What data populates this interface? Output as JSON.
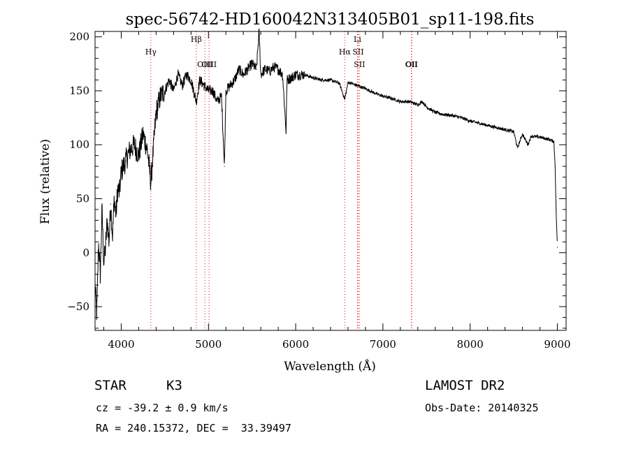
{
  "chart_data": {
    "type": "line",
    "title": "spec-56742-HD160042N313405B01_sp11-198.fits",
    "xlabel": "Wavelength (Å)",
    "ylabel": "Flux (relative)",
    "xlim": [
      3700,
      9100
    ],
    "ylim": [
      -72,
      205
    ],
    "x_ticks": [
      4000,
      5000,
      6000,
      7000,
      8000,
      9000
    ],
    "y_ticks": [
      -50,
      0,
      50,
      100,
      150,
      200
    ],
    "grid": false,
    "line_color": "#000000",
    "marker_color": "#ff0000",
    "series": [
      {
        "x": [
          3700,
          3720,
          3740,
          3760,
          3780,
          3800,
          3820,
          3840,
          3860,
          3880,
          3900,
          3920,
          3940,
          3960,
          3980,
          4000,
          4050,
          4100,
          4150,
          4200,
          4250,
          4300,
          4340,
          4400,
          4450,
          4500,
          4550,
          4600,
          4650,
          4700,
          4750,
          4800,
          4861,
          4900,
          4950,
          5000,
          5050,
          5100,
          5150,
          5170,
          5183,
          5200,
          5250,
          5300,
          5350,
          5400,
          5450,
          5500,
          5550,
          5580,
          5600,
          5650,
          5700,
          5750,
          5800,
          5850,
          5890,
          5900,
          5950,
          6000,
          6100,
          6200,
          6300,
          6400,
          6500,
          6563,
          6600,
          6700,
          6800,
          6900,
          7000,
          7100,
          7200,
          7300,
          7400,
          7450,
          7500,
          7600,
          7700,
          7800,
          7900,
          8000,
          8100,
          8200,
          8300,
          8400,
          8500,
          8542,
          8600,
          8662,
          8700,
          8800,
          8900,
          8960,
          8975,
          8985,
          9000
        ],
        "y": [
          -30,
          -58,
          10,
          -20,
          40,
          -10,
          5,
          30,
          10,
          45,
          15,
          50,
          35,
          60,
          55,
          75,
          85,
          95,
          100,
          90,
          110,
          95,
          65,
          130,
          145,
          150,
          160,
          150,
          165,
          155,
          165,
          160,
          140,
          160,
          155,
          150,
          150,
          140,
          145,
          105,
          80,
          150,
          155,
          160,
          170,
          165,
          170,
          175,
          170,
          205,
          165,
          170,
          168,
          172,
          170,
          165,
          112,
          160,
          162,
          165,
          165,
          162,
          160,
          160,
          157,
          142,
          158,
          155,
          152,
          148,
          145,
          143,
          140,
          140,
          137,
          140,
          135,
          130,
          128,
          127,
          125,
          122,
          120,
          118,
          116,
          114,
          112,
          97,
          110,
          100,
          108,
          107,
          105,
          103,
          80,
          40,
          5
        ]
      }
    ],
    "line_markers": [
      {
        "label": "Hγ",
        "x": 4340,
        "level": 1
      },
      {
        "label": "Hβ",
        "x": 4861,
        "level": 0
      },
      {
        "label": "OIII",
        "x": 4959,
        "level": 2
      },
      {
        "label": "OIII",
        "x": 5007,
        "level": 2
      },
      {
        "label": "Hα",
        "x": 6563,
        "level": 1
      },
      {
        "label": "Li",
        "x": 6708,
        "level": 0
      },
      {
        "label": "SII",
        "x": 6716,
        "level": 1
      },
      {
        "label": "SII",
        "x": 6731,
        "level": 2
      },
      {
        "label": "OII",
        "x": 7325,
        "level": 2
      },
      {
        "label": "OII",
        "x": 7330,
        "level": 2
      }
    ]
  },
  "info": {
    "class_label": "STAR",
    "subclass": "K3",
    "survey": "LAMOST DR2",
    "redshift_line": "cz = -39.2 ± 0.9 km/s",
    "obs_date_line": "Obs-Date: 20140325",
    "coords_line": "RA = 240.15372, DEC =  33.39497"
  }
}
